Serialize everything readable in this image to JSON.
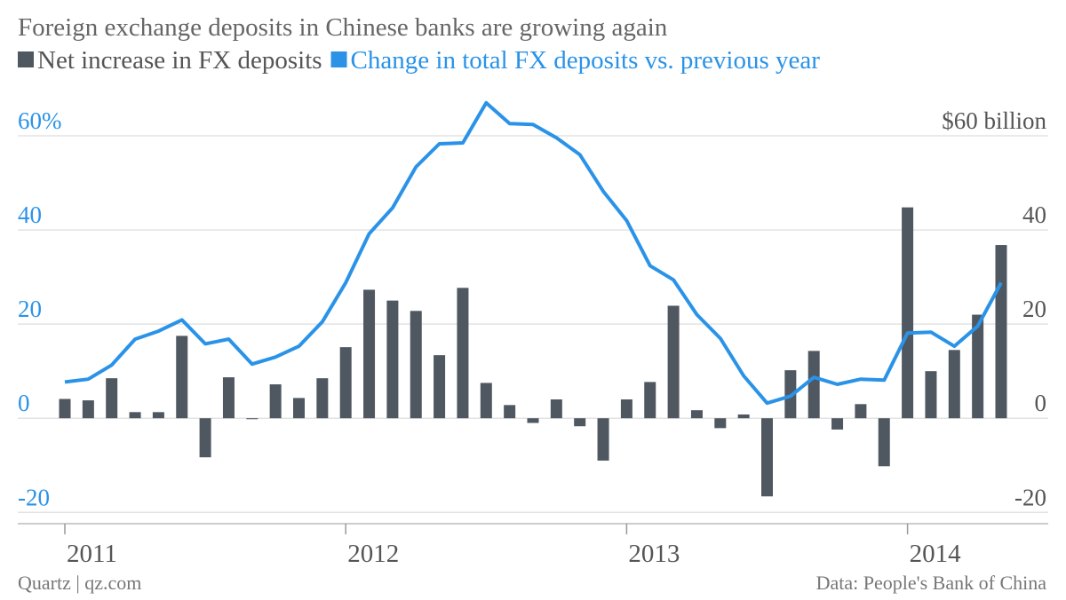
{
  "chart_data": {
    "type": "bar",
    "title": "Foreign exchange deposits in Chinese banks are growing again",
    "categories": [
      "2011",
      null,
      null,
      null,
      null,
      null,
      null,
      null,
      null,
      null,
      null,
      null,
      "2012",
      null,
      null,
      null,
      null,
      null,
      null,
      null,
      null,
      null,
      null,
      null,
      "2013",
      null,
      null,
      null,
      null,
      null,
      null,
      null,
      null,
      null,
      null,
      null,
      "2014",
      null,
      null,
      null,
      null
    ],
    "series": [
      {
        "name": "Net increase in FX deposits",
        "color": "#4f5761",
        "type": "bar",
        "axis": "y2",
        "values": [
          4.1,
          3.8,
          8.5,
          1.3,
          1.3,
          17.5,
          -8.3,
          8.7,
          -0.2,
          7.2,
          4.3,
          8.5,
          15.1,
          27.3,
          25.0,
          22.8,
          13.4,
          27.7,
          7.5,
          2.8,
          -1.0,
          4.0,
          -1.7,
          -9.0,
          4.0,
          7.7,
          23.9,
          1.7,
          -2.1,
          0.8,
          -16.6,
          10.2,
          14.3,
          -2.4,
          3.0,
          -10.2,
          44.8,
          10.0,
          14.5,
          22.0,
          36.8
        ]
      },
      {
        "name": "Change in total FX deposits vs. previous year",
        "color": "#2a93e8",
        "type": "line",
        "values": [
          7.7,
          8.3,
          11.3,
          16.8,
          18.5,
          20.9,
          15.8,
          16.8,
          11.5,
          13.0,
          15.3,
          20.5,
          28.8,
          39.2,
          44.7,
          53.4,
          58.3,
          58.5,
          67.0,
          62.6,
          62.4,
          59.6,
          56.0,
          48.2,
          42.0,
          32.4,
          29.4,
          22.0,
          17.0,
          9.0,
          3.2,
          4.7,
          8.7,
          7.2,
          8.3,
          8.1,
          18.1,
          18.3,
          15.3,
          19.6,
          28.8
        ]
      }
    ],
    "ylim": [
      -22.4,
      70
    ],
    "yticks": [
      {
        "value": 60,
        "label": "60%"
      },
      40,
      20,
      0,
      -20
    ],
    "y2lim": [
      -22.4,
      70
    ],
    "y2ticks": [
      {
        "value": 60,
        "label": "$60 billion"
      },
      40,
      20,
      0,
      -20
    ],
    "grid": true,
    "source_left": "Quartz | qz.com",
    "source_right": "Data: People's Bank of China"
  }
}
